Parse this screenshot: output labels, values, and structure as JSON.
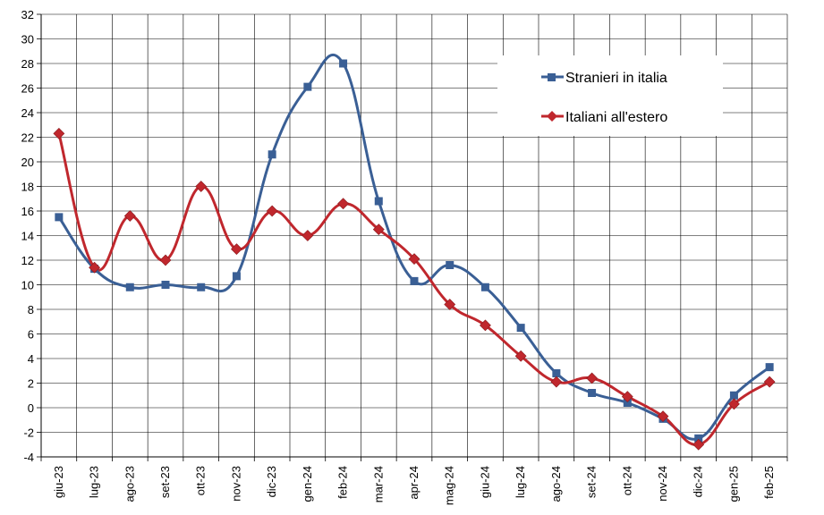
{
  "chart_data": {
    "type": "line",
    "categories": [
      "giu-23",
      "lug-23",
      "ago-23",
      "set-23",
      "ott-23",
      "nov-23",
      "dic-23",
      "gen-24",
      "feb-24",
      "mar-24",
      "apr-24",
      "mag-24",
      "giu-24",
      "lug-24",
      "ago-24",
      "set-24",
      "ott-24",
      "nov-24",
      "dic-24",
      "gen-25",
      "feb-25"
    ],
    "ylim": [
      -4,
      32
    ],
    "yticks": [
      -4,
      -2,
      0,
      2,
      4,
      6,
      8,
      10,
      12,
      14,
      16,
      18,
      20,
      22,
      24,
      26,
      28,
      30,
      32
    ],
    "grid": true,
    "legend_position": "top-right",
    "series": [
      {
        "name": "Stranieri in italia",
        "color": "#3A5F95",
        "marker": "square",
        "values": [
          15.5,
          11.3,
          9.8,
          10.0,
          9.8,
          10.7,
          20.6,
          26.1,
          28.0,
          16.8,
          10.3,
          11.6,
          9.8,
          6.5,
          2.8,
          1.2,
          0.4,
          -0.9,
          -2.5,
          1.0,
          3.3
        ]
      },
      {
        "name": "Italiani all'estero",
        "color": "#C0272D",
        "marker": "diamond",
        "values": [
          22.3,
          11.4,
          15.6,
          12.0,
          18.0,
          12.9,
          16.0,
          14.0,
          16.6,
          14.5,
          12.1,
          8.4,
          6.7,
          4.2,
          2.1,
          2.4,
          0.9,
          -0.7,
          -3.0,
          0.3,
          2.1
        ]
      }
    ]
  }
}
